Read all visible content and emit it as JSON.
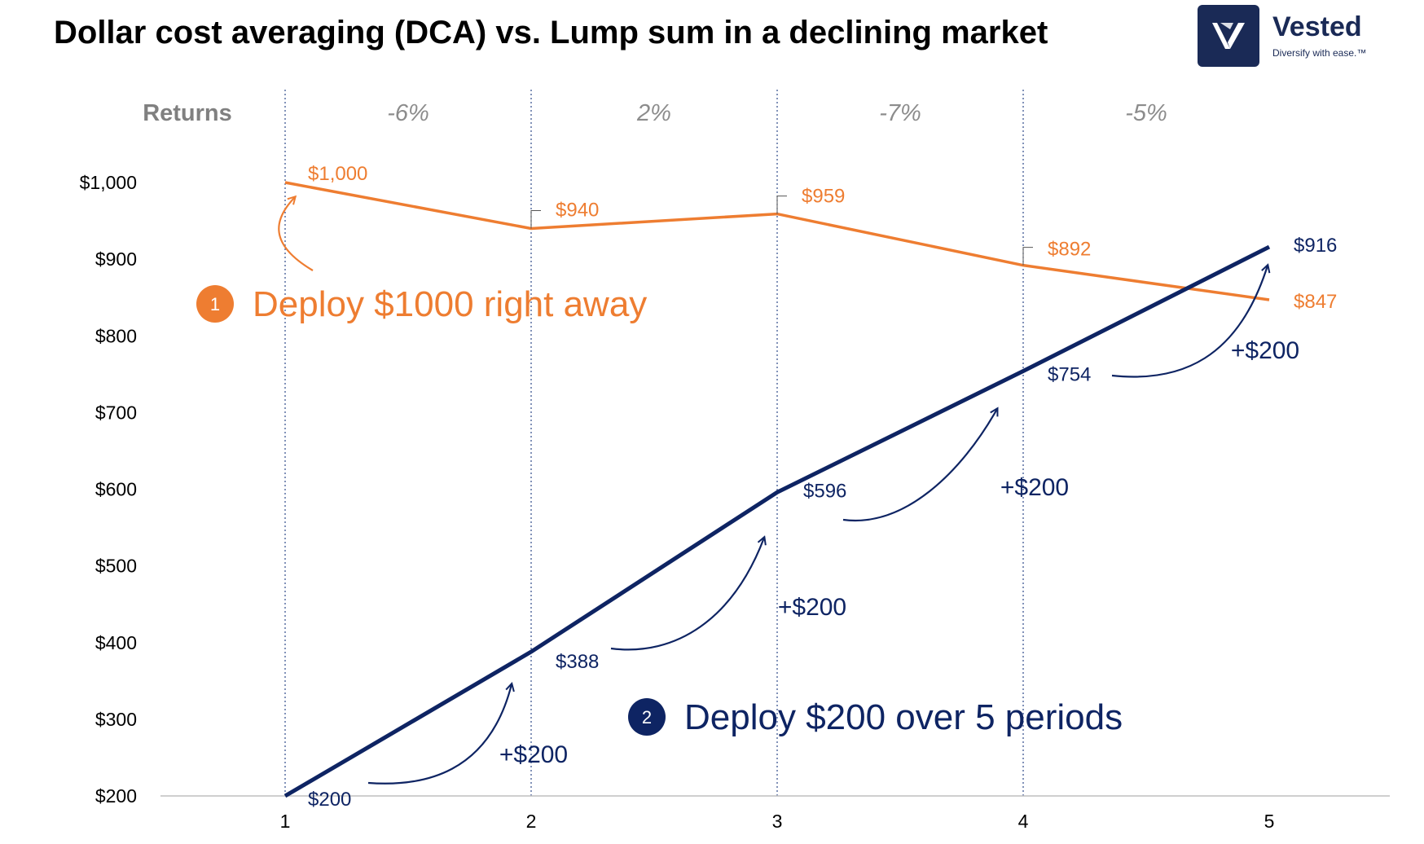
{
  "title": "Dollar cost averaging (DCA) vs. Lump sum in a declining market",
  "logo": {
    "name": "Vested",
    "tagline": "Diversify with ease.™",
    "icon": "vested-logo-icon",
    "color": "#1a2a56"
  },
  "colors": {
    "lump_sum": "#ee7d31",
    "dca": "#0e2463",
    "gridline": "#2e4a8a"
  },
  "chart_data": {
    "type": "line",
    "title": "Dollar cost averaging (DCA) vs. Lump sum in a declining market",
    "xlabel": "",
    "ylabel": "",
    "x": [
      1,
      2,
      3,
      4,
      5
    ],
    "xticks": [
      "1",
      "2",
      "3",
      "4",
      "5"
    ],
    "yticks": [
      "$200",
      "$300",
      "$400",
      "$500",
      "$600",
      "$700",
      "$800",
      "$900",
      "$1,000"
    ],
    "ylim": [
      200,
      1000
    ],
    "returns_label": "Returns",
    "returns": [
      "-6%",
      "2%",
      "-7%",
      "-5%"
    ],
    "series": [
      {
        "values": [
          1000,
          940,
          959,
          892,
          847
        ],
        "labels": [
          "$1,000",
          "$940",
          "$959",
          "$892",
          "$847"
        ],
        "color": "#ee7d31"
      },
      {
        "values": [
          200,
          388,
          596,
          754,
          916
        ],
        "labels": [
          "$200",
          "$388",
          "$596",
          "$754",
          "$916"
        ],
        "color": "#0e2463"
      }
    ],
    "additions": [
      "+$200",
      "+$200",
      "+$200",
      "+$200"
    ],
    "annotations": [
      {
        "number": "1",
        "text": "Deploy $1000 right away",
        "color": "#ee7d31"
      },
      {
        "number": "2",
        "text": "Deploy $200 over 5 periods",
        "color": "#0e2463"
      }
    ],
    "grid": false,
    "vertical_period_lines": true
  }
}
